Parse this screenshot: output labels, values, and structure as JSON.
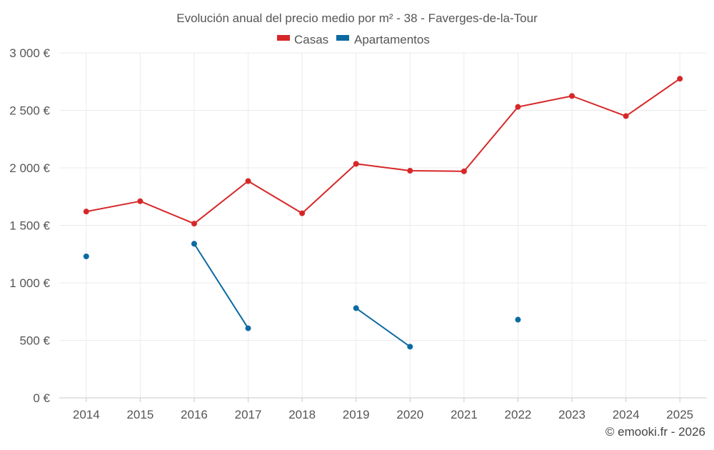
{
  "chart_data": {
    "type": "line",
    "title": "Evolución anual del precio medio por m² - 38 - Faverges-de-la-Tour",
    "xlabel": "",
    "ylabel": "",
    "categories": [
      "2014",
      "2015",
      "2016",
      "2017",
      "2018",
      "2019",
      "2020",
      "2021",
      "2022",
      "2023",
      "2024",
      "2025"
    ],
    "ylim": [
      0,
      3000
    ],
    "yticks": [
      0,
      500,
      1000,
      1500,
      2000,
      2500,
      3000
    ],
    "ytick_labels": [
      "0 €",
      "500 €",
      "1 000 €",
      "1 500 €",
      "2 000 €",
      "2 500 €",
      "3 000 €"
    ],
    "grid": true,
    "legend_position": "top-center",
    "series": [
      {
        "name": "Casas",
        "color": "#d62728",
        "values": [
          1620,
          1710,
          1515,
          1885,
          1605,
          2035,
          1975,
          1970,
          2530,
          2625,
          2450,
          2775
        ]
      },
      {
        "name": "Apartamentos",
        "color": "#0b6aa2",
        "values": [
          1230,
          null,
          1340,
          605,
          null,
          780,
          445,
          null,
          680,
          null,
          null,
          null
        ]
      }
    ]
  },
  "footer": {
    "copyright": "© emooki.fr - 2026"
  }
}
